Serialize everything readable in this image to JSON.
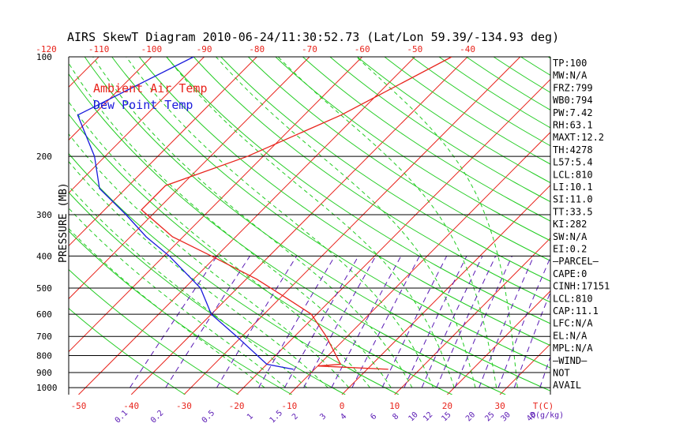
{
  "chart_data": {
    "type": "line",
    "title": "AIRS SkewT Diagram 2010-06-24/11:30:52.73 (Lat/Lon 59.39/-134.93 deg)",
    "ylabel": "PRESSURE (MB)",
    "y_scale": "log",
    "ylim": [
      1050,
      100
    ],
    "pressure_ticks": [
      100,
      200,
      300,
      400,
      500,
      600,
      700,
      800,
      900,
      1000
    ],
    "top_temp_ticks": [
      -120,
      -110,
      -100,
      -90,
      -80,
      -70,
      -60,
      -50,
      -40
    ],
    "bottom_temp_ticks": [
      -50,
      -40,
      -30,
      -20,
      -10,
      0,
      10,
      20,
      30
    ],
    "bottom_temp_unit": "T(C)",
    "mixing_ratio_labels": [
      "0.1",
      "0.2",
      "0.5",
      "1",
      "1.5",
      "2",
      "3",
      "4",
      "6",
      "8",
      "10",
      "12",
      "15",
      "20",
      "25",
      "30",
      "40"
    ],
    "mixing_ratio_unit": "Q(g/kg)",
    "legend": [
      {
        "name": "Ambient Air Temp",
        "color": "#e8241c"
      },
      {
        "name": "Dew Point Temp",
        "color": "#1a1adc"
      }
    ],
    "series": [
      {
        "name": "Ambient Air Temp",
        "color": "#e8241c",
        "points": [
          {
            "p": 100,
            "t": -43
          },
          {
            "p": 150,
            "t": -53
          },
          {
            "p": 200,
            "t": -63
          },
          {
            "p": 245,
            "t": -73
          },
          {
            "p": 290,
            "t": -73
          },
          {
            "p": 350,
            "t": -62
          },
          {
            "p": 400,
            "t": -51
          },
          {
            "p": 470,
            "t": -38
          },
          {
            "p": 550,
            "t": -27
          },
          {
            "p": 600,
            "t": -21
          },
          {
            "p": 700,
            "t": -14
          },
          {
            "p": 850,
            "t": -6
          },
          {
            "p": 860,
            "t": -10
          },
          {
            "p": 880,
            "t": 4
          }
        ]
      },
      {
        "name": "Dew Point Temp",
        "color": "#1a1adc",
        "points": [
          {
            "p": 100,
            "t": -92
          },
          {
            "p": 150,
            "t": -103
          },
          {
            "p": 200,
            "t": -92
          },
          {
            "p": 250,
            "t": -85
          },
          {
            "p": 300,
            "t": -75
          },
          {
            "p": 350,
            "t": -67
          },
          {
            "p": 400,
            "t": -59
          },
          {
            "p": 500,
            "t": -47
          },
          {
            "p": 600,
            "t": -40
          },
          {
            "p": 700,
            "t": -31
          },
          {
            "p": 850,
            "t": -20
          },
          {
            "p": 880,
            "t": -14
          }
        ]
      }
    ],
    "indices": [
      "TP:100",
      "MW:N/A",
      "FRZ:799",
      "WB0:794",
      "PW:7.42",
      "RH:63.1",
      "MAXT:12.2",
      "TH:4278",
      "L57:5.4",
      "LCL:810",
      "LI:10.1",
      "SI:11.0",
      "TT:33.5",
      "KI:282",
      "SW:N/A",
      "EI:0.2",
      "—PARCEL—",
      "CAPE:0",
      "CINH:17151",
      "LCL:810",
      "CAP:11.1",
      "LFC:N/A",
      "EL:N/A",
      "MPL:N/A",
      "—WIND—",
      "NOT",
      "AVAIL"
    ],
    "colors": {
      "isotherm": "#e8241c",
      "dry_adiabat": "#22cc22",
      "moist_adiabat": "#22cc22",
      "mixing_ratio": "#5a1ab4",
      "axis_top": "#e8241c",
      "axis_bottom_temp": "#e8241c",
      "axis_bottom_q": "#5a1ab4"
    }
  }
}
